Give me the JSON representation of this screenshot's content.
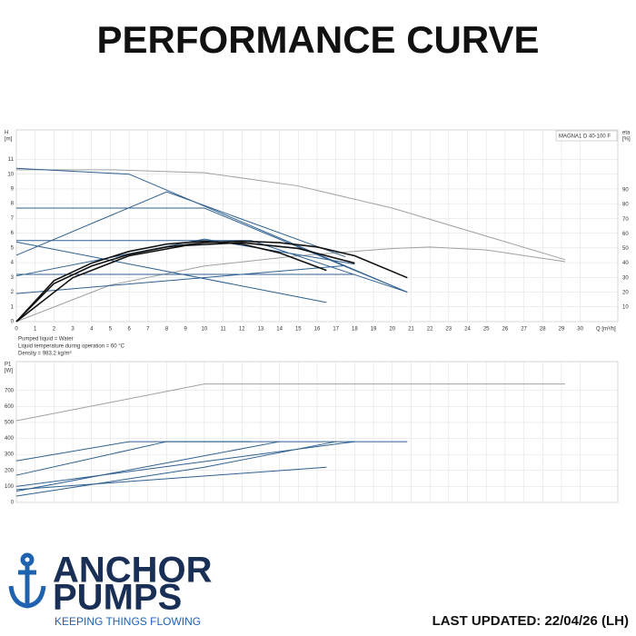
{
  "header": {
    "title": "PERFORMANCE CURVE"
  },
  "chart_data": [
    {
      "type": "line",
      "y_label": "H",
      "y_unit": "[m]",
      "y2_label": "eta",
      "y2_unit": "[%]",
      "x_label": "Q [m³/h]",
      "legend_box": "MAGNA1 D 40-100 F",
      "notes": [
        "Pumped liquid = Water",
        "Liquid temperature during operation = 60 °C",
        "Density = 983.2 kg/m³"
      ],
      "xlim": [
        0,
        32
      ],
      "xticks": [
        0,
        1,
        2,
        3,
        4,
        5,
        6,
        7,
        8,
        9,
        10,
        11,
        12,
        13,
        14,
        15,
        16,
        17,
        18,
        19,
        20,
        21,
        22,
        23,
        24,
        25,
        26,
        27,
        28,
        29,
        30
      ],
      "ylim": [
        0,
        13
      ],
      "yticks": [
        0,
        1,
        2,
        3,
        4,
        5,
        6,
        7,
        8,
        9,
        10,
        11
      ],
      "y2lim": [
        0,
        131
      ],
      "y2ticks": [
        10,
        20,
        30,
        40,
        50,
        60,
        70,
        80,
        90
      ],
      "grid": true,
      "series": [
        {
          "color": "#a0a0a0",
          "x": [
            0,
            5,
            10,
            15,
            20,
            25,
            29.2
          ],
          "values": [
            10.3,
            10.3,
            10.1,
            9.2,
            7.7,
            5.8,
            4.2
          ]
        },
        {
          "color": "#a0a0a0",
          "axis": "y2",
          "x": [
            0,
            5,
            10,
            15,
            20,
            22,
            25,
            29.2
          ],
          "values": [
            0,
            25,
            38,
            45,
            50,
            51,
            49,
            41
          ]
        },
        {
          "color": "#2e5f8f",
          "x": [
            0,
            6,
            20.8
          ],
          "values": [
            10.4,
            10,
            2.0
          ]
        },
        {
          "color": "#2e5f8f",
          "x": [
            0,
            8,
            17.5
          ],
          "values": [
            4.5,
            8.8,
            4.4
          ]
        },
        {
          "color": "#2e5f8f",
          "x": [
            0,
            10,
            20.8
          ],
          "values": [
            7.7,
            7.7,
            2.0
          ]
        },
        {
          "color": "#2e5f8f",
          "x": [
            0,
            12.5,
            20.8
          ],
          "values": [
            5.5,
            5.5,
            2.0
          ]
        },
        {
          "color": "#2e5f8f",
          "x": [
            0,
            16.5
          ],
          "values": [
            5.4,
            1.3
          ]
        },
        {
          "color": "#2e5f8f",
          "x": [
            0,
            18
          ],
          "values": [
            3.2,
            3.2
          ]
        },
        {
          "color": "#2e5f8f",
          "x": [
            0,
            17.5
          ],
          "values": [
            1.9,
            3.8
          ]
        },
        {
          "color": "#2e5f8f",
          "x": [
            0,
            10,
            18
          ],
          "values": [
            3.1,
            5.6,
            3.9
          ]
        },
        {
          "color": "#111111",
          "axis": "y2",
          "x": [
            0,
            2,
            4,
            6,
            8,
            10,
            12,
            14,
            16.5
          ],
          "values": [
            0,
            28,
            40,
            48,
            53,
            55,
            53,
            47,
            35
          ]
        },
        {
          "color": "#111111",
          "axis": "y2",
          "x": [
            0,
            2,
            4,
            6,
            8,
            10,
            12,
            14,
            16,
            18,
            20.8
          ],
          "values": [
            0,
            26,
            38,
            46,
            51,
            54,
            55,
            54,
            51,
            45,
            30
          ]
        },
        {
          "color": "#111111",
          "axis": "y2",
          "x": [
            0,
            3,
            6,
            9,
            12,
            15,
            18
          ],
          "values": [
            0,
            30,
            45,
            52,
            54,
            50,
            40
          ]
        }
      ]
    },
    {
      "type": "line",
      "y_label": "P1",
      "y_unit": "[W]",
      "xlim": [
        0,
        32
      ],
      "xticks": [
        0,
        1,
        2,
        3,
        4,
        5,
        6,
        7,
        8,
        9,
        10,
        11,
        12,
        13,
        14,
        15,
        16,
        17,
        18,
        19,
        20,
        21,
        22,
        23,
        24,
        25,
        26,
        27,
        28,
        29,
        30
      ],
      "ylim": [
        0,
        880
      ],
      "yticks": [
        0,
        100,
        200,
        300,
        400,
        500,
        600,
        700
      ],
      "grid": true,
      "series": [
        {
          "color": "#a0a0a0",
          "x": [
            0,
            10,
            29.2
          ],
          "values": [
            510,
            740,
            740
          ]
        },
        {
          "color": "#2e5f8f",
          "x": [
            0,
            6,
            20.8
          ],
          "values": [
            260,
            380,
            380
          ]
        },
        {
          "color": "#2e5f8f",
          "x": [
            0,
            8,
            12.5
          ],
          "values": [
            170,
            380,
            380
          ]
        },
        {
          "color": "#2e5f8f",
          "x": [
            0,
            18
          ],
          "values": [
            100,
            380
          ]
        },
        {
          "color": "#2e5f8f",
          "x": [
            0,
            14
          ],
          "values": [
            70,
            380
          ]
        },
        {
          "color": "#2e5f8f",
          "x": [
            0,
            10,
            17
          ],
          "values": [
            40,
            220,
            380
          ]
        },
        {
          "color": "#2e5f8f",
          "x": [
            0,
            16.5
          ],
          "values": [
            80,
            220
          ]
        }
      ]
    }
  ],
  "logo": {
    "line1": "ANCHOR",
    "line2": "PUMPS",
    "tagline": "KEEPING THINGS FLOWING"
  },
  "footer": {
    "updated": "LAST UPDATED: 22/04/26 (LH)"
  }
}
